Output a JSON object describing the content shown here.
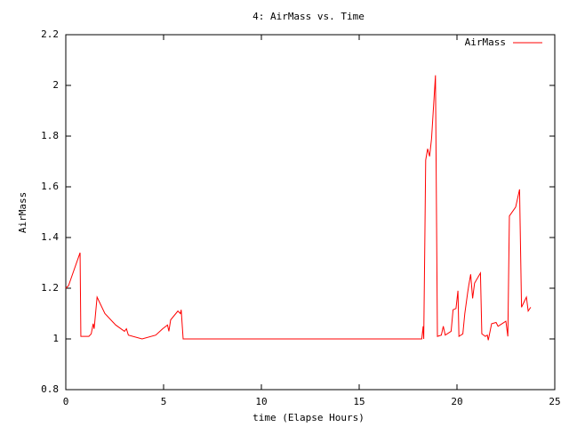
{
  "chart_data": {
    "type": "line",
    "title": "4: AirMass vs. Time",
    "x_label": "time (Elapse Hours)",
    "y_label": "AirMass",
    "xlim": [
      0,
      25
    ],
    "xticks": [
      0,
      5,
      10,
      15,
      20,
      25
    ],
    "ylim": [
      0.8,
      2.2
    ],
    "yticks": [
      0.8,
      1,
      1.2,
      1.4,
      1.6,
      1.8,
      2,
      2.2
    ],
    "grid": false,
    "legend": "top-right",
    "series": [
      {
        "name": "AirMass",
        "color": "#ff0000",
        "x": [
          0,
          0.14,
          0.73,
          0.77,
          1.18,
          1.3,
          1.4,
          1.45,
          1.6,
          2.0,
          2.55,
          3.0,
          3.1,
          3.2,
          3.9,
          4.6,
          4.95,
          5.2,
          5.27,
          5.36,
          5.73,
          5.86,
          5.9,
          6.0,
          18.2,
          18.27,
          18.3,
          18.35,
          18.4,
          18.5,
          18.6,
          18.7,
          18.8,
          18.9,
          19.0,
          19.2,
          19.3,
          19.4,
          19.7,
          19.8,
          19.95,
          20.05,
          20.1,
          20.3,
          20.4,
          20.55,
          20.6,
          20.7,
          20.8,
          20.9,
          21.2,
          21.27,
          21.45,
          21.55,
          21.6,
          21.77,
          22.0,
          22.1,
          22.3,
          22.5,
          22.6,
          22.68,
          23.0,
          23.2,
          23.3,
          23.55,
          23.64,
          23.77
        ],
        "values": [
          1.2,
          1.21,
          1.34,
          1.01,
          1.01,
          1.02,
          1.06,
          1.04,
          1.165,
          1.1,
          1.055,
          1.03,
          1.04,
          1.015,
          1.0,
          1.015,
          1.04,
          1.055,
          1.03,
          1.075,
          1.11,
          1.1,
          1.115,
          1.0,
          1.0,
          1.05,
          1.0,
          1.34,
          1.705,
          1.75,
          1.72,
          1.79,
          1.915,
          2.04,
          1.01,
          1.015,
          1.05,
          1.015,
          1.03,
          1.115,
          1.12,
          1.19,
          1.01,
          1.02,
          1.1,
          1.185,
          1.21,
          1.255,
          1.16,
          1.22,
          1.26,
          1.02,
          1.01,
          1.015,
          0.995,
          1.06,
          1.065,
          1.05,
          1.06,
          1.07,
          1.01,
          1.485,
          1.52,
          1.59,
          1.125,
          1.165,
          1.11,
          1.125
        ]
      }
    ]
  }
}
